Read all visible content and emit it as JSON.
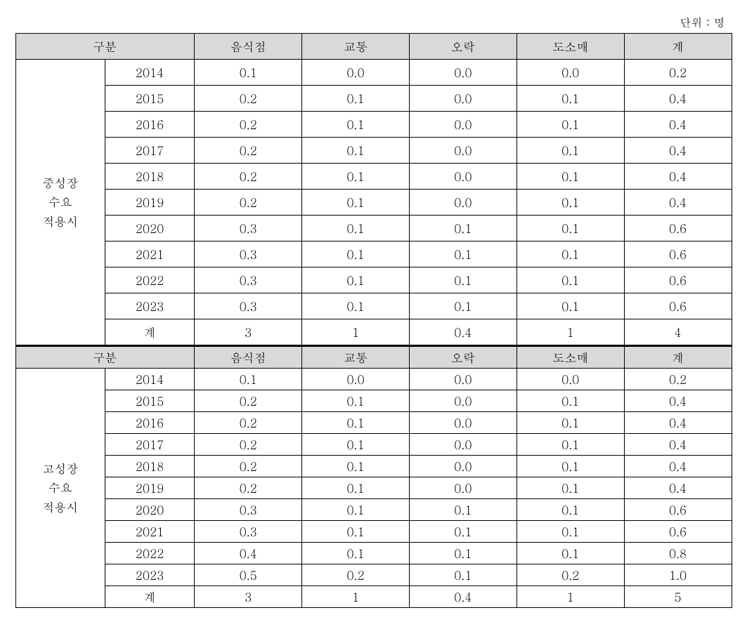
{
  "unit_label": "단위 : 명",
  "section1": {
    "header": {
      "gubun": "구분",
      "cols": [
        "음식점",
        "교통",
        "오락",
        "도소매",
        "계"
      ]
    },
    "row_label": "중성장\n수요\n적용시",
    "rows": [
      {
        "year": "2014",
        "vals": [
          "0.1",
          "0.0",
          "0.0",
          "0.0",
          "0.2"
        ]
      },
      {
        "year": "2015",
        "vals": [
          "0.2",
          "0.1",
          "0.0",
          "0.1",
          "0.4"
        ]
      },
      {
        "year": "2016",
        "vals": [
          "0.2",
          "0.1",
          "0.0",
          "0.1",
          "0.4"
        ]
      },
      {
        "year": "2017",
        "vals": [
          "0.2",
          "0.1",
          "0.0",
          "0.1",
          "0.4"
        ]
      },
      {
        "year": "2018",
        "vals": [
          "0.2",
          "0.1",
          "0.0",
          "0.1",
          "0.4"
        ]
      },
      {
        "year": "2019",
        "vals": [
          "0.2",
          "0.1",
          "0.0",
          "0.1",
          "0.4"
        ]
      },
      {
        "year": "2020",
        "vals": [
          "0.3",
          "0.1",
          "0.1",
          "0.1",
          "0.6"
        ]
      },
      {
        "year": "2021",
        "vals": [
          "0.3",
          "0.1",
          "0.1",
          "0.1",
          "0.6"
        ]
      },
      {
        "year": "2022",
        "vals": [
          "0.3",
          "0.1",
          "0.1",
          "0.1",
          "0.6"
        ]
      },
      {
        "year": "2023",
        "vals": [
          "0.3",
          "0.1",
          "0.1",
          "0.1",
          "0.6"
        ]
      },
      {
        "year": "계",
        "vals": [
          "3",
          "1",
          "0.4",
          "1",
          "4"
        ]
      }
    ]
  },
  "section2": {
    "header": {
      "gubun": "구분",
      "cols": [
        "음식점",
        "교통",
        "오락",
        "도소매",
        "계"
      ]
    },
    "row_label": "고성장\n수요\n적용시",
    "rows": [
      {
        "year": "2014",
        "vals": [
          "0.1",
          "0.0",
          "0.0",
          "0.0",
          "0.2"
        ]
      },
      {
        "year": "2015",
        "vals": [
          "0.2",
          "0.1",
          "0.0",
          "0.1",
          "0.4"
        ]
      },
      {
        "year": "2016",
        "vals": [
          "0.2",
          "0.1",
          "0.0",
          "0.1",
          "0.4"
        ]
      },
      {
        "year": "2017",
        "vals": [
          "0.2",
          "0.1",
          "0.0",
          "0.1",
          "0.4"
        ]
      },
      {
        "year": "2018",
        "vals": [
          "0.2",
          "0.1",
          "0.0",
          "0.1",
          "0.4"
        ]
      },
      {
        "year": "2019",
        "vals": [
          "0.2",
          "0.1",
          "0.0",
          "0.1",
          "0.4"
        ]
      },
      {
        "year": "2020",
        "vals": [
          "0.3",
          "0.1",
          "0.1",
          "0.1",
          "0.6"
        ]
      },
      {
        "year": "2021",
        "vals": [
          "0.3",
          "0.1",
          "0.1",
          "0.1",
          "0.6"
        ]
      },
      {
        "year": "2022",
        "vals": [
          "0.4",
          "0.1",
          "0.1",
          "0.1",
          "0.8"
        ]
      },
      {
        "year": "2023",
        "vals": [
          "0.5",
          "0.2",
          "0.1",
          "0.2",
          "1.0"
        ]
      },
      {
        "year": "계",
        "vals": [
          "3",
          "1",
          "0.4",
          "1",
          "5"
        ]
      }
    ]
  }
}
